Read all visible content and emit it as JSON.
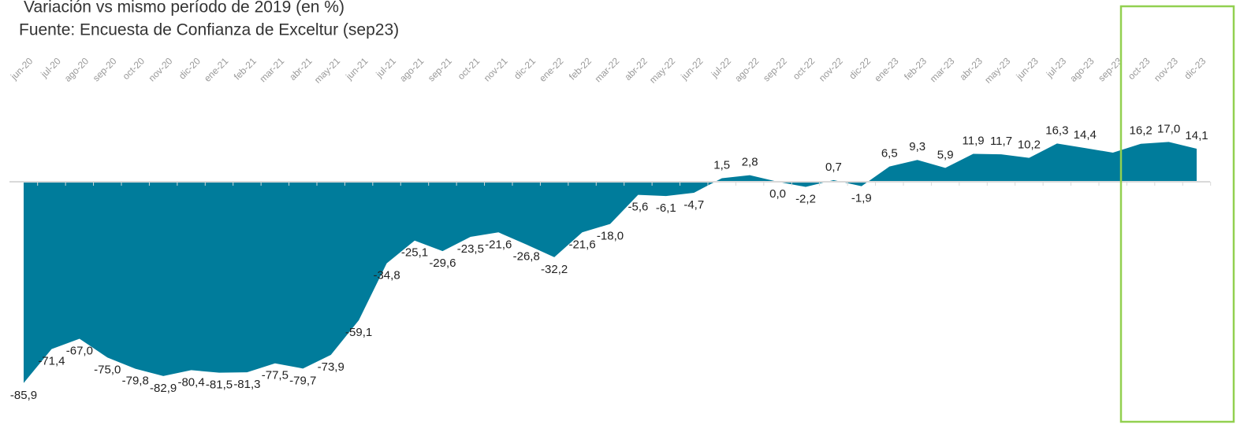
{
  "chart_data": {
    "type": "area",
    "title": "Variación vs mismo período de  2019 (en %)",
    "subtitle": "Fuente: Encuesta de Confianza de Exceltur (sep23)",
    "categories": [
      "jun-20",
      "jul-20",
      "ago-20",
      "sep-20",
      "oct-20",
      "nov-20",
      "dic-20",
      "ene-21",
      "feb-21",
      "mar-21",
      "abr-21",
      "may-21",
      "jun-21",
      "jul-21",
      "ago-21",
      "sep-21",
      "oct-21",
      "nov-21",
      "dic-21",
      "ene-22",
      "feb-22",
      "mar-22",
      "abr-22",
      "may-22",
      "jun-22",
      "jul-22",
      "ago-22",
      "sep-22",
      "oct-22",
      "nov-22",
      "dic-22",
      "ene-23",
      "feb-23",
      "mar-23",
      "abr-23",
      "may-23",
      "jun-23",
      "jul-23",
      "ago-23",
      "sep-23",
      "oct-23",
      "nov-23",
      "dic-23"
    ],
    "values": [
      -85.9,
      -71.4,
      -67.0,
      -75.0,
      -79.8,
      -82.9,
      -80.4,
      -81.5,
      -81.3,
      -77.5,
      -79.7,
      -73.9,
      -59.1,
      -34.8,
      -25.1,
      -29.6,
      -23.5,
      -21.6,
      -26.8,
      -32.2,
      -21.6,
      -18.0,
      -5.6,
      -6.1,
      -4.7,
      1.5,
      2.8,
      0.0,
      -2.2,
      0.7,
      -1.9,
      6.5,
      9.3,
      5.9,
      11.9,
      11.7,
      10.2,
      16.3,
      14.4,
      12.4,
      16.2,
      17.0,
      14.1
    ],
    "value_labels": [
      "-85,9",
      "-71,4",
      "-67,0",
      "-75,0",
      "-79,8",
      "-82,9",
      "-80,4",
      "-81,5",
      "-81,3",
      "-77,5",
      "-79,7",
      "-73,9",
      "-59,1",
      "-34,8",
      "-25,1",
      "-29,6",
      "-23,5",
      "-21,6",
      "-26,8",
      "-32,2",
      "-21,6",
      "-18,0",
      "-5,6",
      "-6,1",
      "-4,7",
      "1,5",
      "2,8",
      "0,0",
      "-2,2",
      "0,7",
      "-1,9",
      "6,5",
      "9,3",
      "5,9",
      "11,9",
      "11,7",
      "10,2",
      "16,3",
      "14,4",
      null,
      "16,2",
      "17,0",
      "14,1"
    ],
    "color": "#007c9b",
    "ylim": [
      -90,
      20
    ]
  }
}
